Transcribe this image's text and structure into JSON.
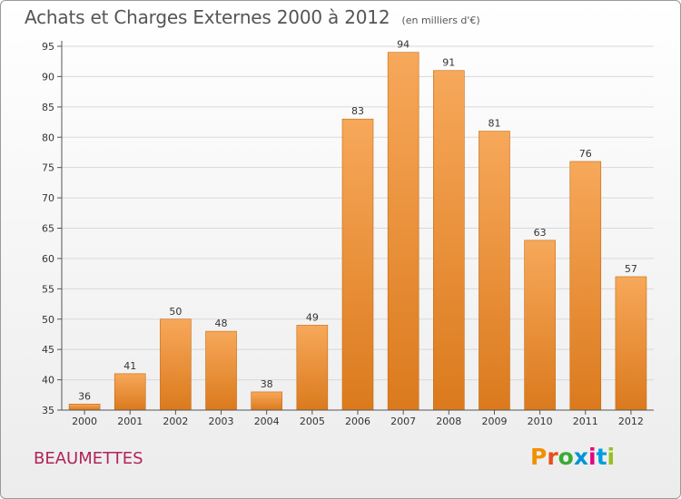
{
  "header": {
    "title": "Achats et Charges Externes 2000 à 2012",
    "unit": "(en milliers d'€)"
  },
  "footer": {
    "location": "BEAUMETTES",
    "logo": [
      "P",
      "r",
      "o",
      "x",
      "i",
      "t",
      "i"
    ]
  },
  "colors": {
    "bar_top": "#f7a85a",
    "bar_bottom": "#db7a1d",
    "bar_edge": "#c46a14",
    "grid": "#d9d9d9",
    "axis": "#555555",
    "location": "#b0245a",
    "logo": [
      "#f29100",
      "#e84e1b",
      "#3aaa35",
      "#0094d4",
      "#e6007e",
      "#009ee0",
      "#95c11f"
    ]
  },
  "chart_data": {
    "type": "bar",
    "categories": [
      "2000",
      "2001",
      "2002",
      "2003",
      "2004",
      "2005",
      "2006",
      "2007",
      "2008",
      "2009",
      "2010",
      "2011",
      "2012"
    ],
    "values": [
      36,
      41,
      50,
      48,
      38,
      49,
      83,
      94,
      91,
      81,
      63,
      76,
      57
    ],
    "ylim": [
      35,
      95
    ],
    "yticks": [
      35,
      40,
      45,
      50,
      55,
      60,
      65,
      70,
      75,
      80,
      85,
      90,
      95
    ],
    "grid": true,
    "show_value_labels": true
  }
}
